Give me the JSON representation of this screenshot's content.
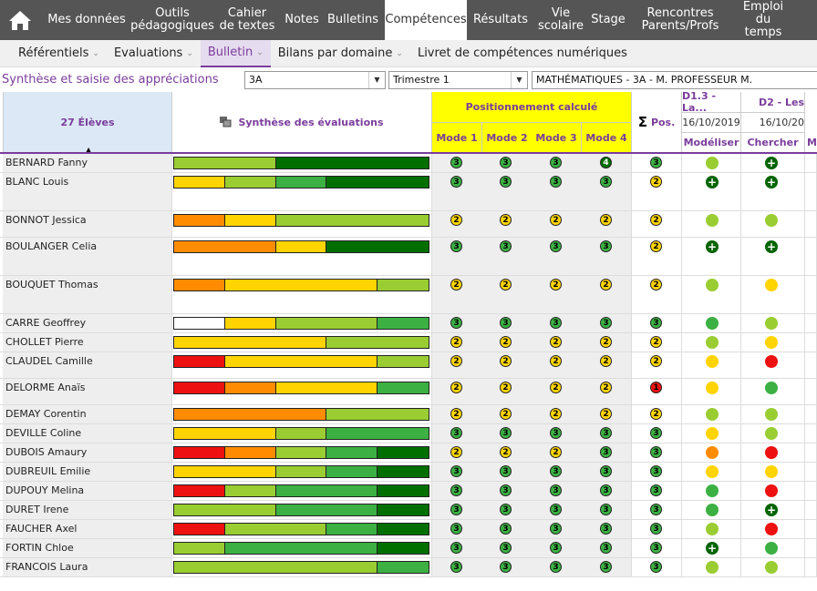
{
  "nav": {
    "tabs": [
      {
        "label": "Mes données"
      },
      {
        "label": "Outils\npédagogiques"
      },
      {
        "label": "Cahier\nde textes"
      },
      {
        "label": "Notes"
      },
      {
        "label": "Bulletins"
      },
      {
        "label": "Compétences",
        "active": true
      },
      {
        "label": "Résultats"
      },
      {
        "label": "Vie\nscolaire"
      },
      {
        "label": "Stage"
      },
      {
        "label": "Rencontres\nParents/Profs"
      },
      {
        "label": "Emploi\ndu temps"
      }
    ]
  },
  "subnav": [
    {
      "label": "Référentiels",
      "caret": true
    },
    {
      "label": "Evaluations",
      "caret": true
    },
    {
      "label": "Bulletin",
      "caret": true,
      "active": true
    },
    {
      "label": "Bilans par domaine",
      "caret": true
    },
    {
      "label": "Livret de compétences numériques",
      "caret": false
    }
  ],
  "page": {
    "title": "Synthèse et saisie des appréciations",
    "class": "3A",
    "period": "Trimestre 1",
    "subject": "MATHÉMATIQUES - 3A - M. PROFESSEUR M."
  },
  "header": {
    "students": "27 Élèves",
    "synth": "Synthèse des évaluations",
    "pos_calc": "Positionnement calculé",
    "modes": [
      "Mode 1",
      "Mode 2",
      "Mode 3",
      "Mode 4"
    ],
    "pos_label": "Pos.",
    "sigma": "Σ",
    "d13": "D1.3 - La...",
    "d13_date": "16/10/2019",
    "d13_sub": "Modéliser",
    "d2": "D2 - Les",
    "d2_date": "16/10/20",
    "d2_sub": "Chercher",
    "mo": "Mo"
  },
  "colors": {
    "g": "#006f00",
    "mg": "#3cb043",
    "lg": "#9acd32",
    "y": "#ffd400",
    "o": "#ff8c00",
    "r": "#ee1111",
    "w": "#ffffff",
    "accent": "#7a3d9c"
  },
  "students": [
    {
      "name": "BERNARD Fanny",
      "h": 21,
      "bar": [
        [
          "lg",
          40
        ],
        [
          "g",
          60
        ]
      ],
      "m": [
        3,
        3,
        3,
        4
      ],
      "p": 3,
      "d1": "lg",
      "d2": "plus"
    },
    {
      "name": "BLANC Louis",
      "h": 42,
      "bar": [
        [
          "y",
          20
        ],
        [
          "lg",
          20
        ],
        [
          "mg",
          20
        ],
        [
          "g",
          40
        ]
      ],
      "m": [
        3,
        3,
        3,
        3
      ],
      "p": 2,
      "d1": "plus",
      "d2": "plus"
    },
    {
      "name": "BONNOT Jessica",
      "h": 29,
      "bar": [
        [
          "o",
          20
        ],
        [
          "y",
          20
        ],
        [
          "lg",
          60
        ]
      ],
      "m": [
        2,
        2,
        2,
        2
      ],
      "p": 2,
      "d1": "lg",
      "d2": "lg"
    },
    {
      "name": "BOULANGER Celia",
      "h": 42,
      "bar": [
        [
          "o",
          40
        ],
        [
          "y",
          20
        ],
        [
          "g",
          40
        ]
      ],
      "m": [
        3,
        3,
        3,
        3
      ],
      "p": 2,
      "d1": "plus",
      "d2": "plus"
    },
    {
      "name": "BOUQUET Thomas",
      "h": 42,
      "bar": [
        [
          "o",
          20
        ],
        [
          "y",
          60
        ],
        [
          "lg",
          20
        ]
      ],
      "m": [
        2,
        2,
        2,
        2
      ],
      "p": 2,
      "d1": "lg",
      "d2": "y"
    },
    {
      "name": "CARRE Geoffrey",
      "h": 21,
      "bar": [
        [
          "w",
          20
        ],
        [
          "y",
          20
        ],
        [
          "lg",
          40
        ],
        [
          "mg",
          20
        ]
      ],
      "m": [
        3,
        3,
        3,
        3
      ],
      "p": 3,
      "d1": "mg",
      "d2": "lg"
    },
    {
      "name": "CHOLLET Pierre",
      "h": 21,
      "bar": [
        [
          "y",
          60
        ],
        [
          "lg",
          40
        ]
      ],
      "m": [
        2,
        2,
        2,
        2
      ],
      "p": 2,
      "d1": "lg",
      "d2": "y"
    },
    {
      "name": "CLAUDEL Camille",
      "h": 29,
      "bar": [
        [
          "r",
          20
        ],
        [
          "y",
          60
        ],
        [
          "lg",
          20
        ]
      ],
      "m": [
        2,
        2,
        2,
        2
      ],
      "p": 2,
      "d1": "y",
      "d2": "r"
    },
    {
      "name": "DELORME Anaïs",
      "h": 29,
      "bar": [
        [
          "r",
          20
        ],
        [
          "o",
          20
        ],
        [
          "y",
          40
        ],
        [
          "mg",
          20
        ]
      ],
      "m": [
        2,
        2,
        2,
        2
      ],
      "p": 1,
      "d1": "y",
      "d2": "mg"
    },
    {
      "name": "DEMAY Corentin",
      "h": 21,
      "bar": [
        [
          "o",
          60
        ],
        [
          "lg",
          40
        ]
      ],
      "m": [
        2,
        2,
        2,
        2
      ],
      "p": 2,
      "d1": "lg",
      "d2": "lg"
    },
    {
      "name": "DEVILLE Coline",
      "h": 21,
      "bar": [
        [
          "y",
          40
        ],
        [
          "lg",
          20
        ],
        [
          "mg",
          40
        ]
      ],
      "m": [
        3,
        3,
        3,
        3
      ],
      "p": 3,
      "d1": "y",
      "d2": "lg"
    },
    {
      "name": "DUBOIS Amaury",
      "h": 21,
      "bar": [
        [
          "r",
          20
        ],
        [
          "o",
          20
        ],
        [
          "lg",
          20
        ],
        [
          "mg",
          20
        ],
        [
          "g",
          20
        ]
      ],
      "m": [
        2,
        2,
        2,
        3
      ],
      "p": 3,
      "d1": "o",
      "d2": "r"
    },
    {
      "name": "DUBREUIL Emilie",
      "h": 21,
      "bar": [
        [
          "y",
          40
        ],
        [
          "lg",
          20
        ],
        [
          "mg",
          20
        ],
        [
          "g",
          20
        ]
      ],
      "m": [
        3,
        3,
        3,
        3
      ],
      "p": 3,
      "d1": "y",
      "d2": "y"
    },
    {
      "name": "DUPOUY Melina",
      "h": 21,
      "bar": [
        [
          "r",
          20
        ],
        [
          "lg",
          20
        ],
        [
          "mg",
          40
        ],
        [
          "g",
          20
        ]
      ],
      "m": [
        3,
        3,
        3,
        3
      ],
      "p": 3,
      "d1": "mg",
      "d2": "r"
    },
    {
      "name": "DURET Irene",
      "h": 21,
      "bar": [
        [
          "lg",
          40
        ],
        [
          "mg",
          40
        ],
        [
          "g",
          20
        ]
      ],
      "m": [
        3,
        3,
        3,
        3
      ],
      "p": 3,
      "d1": "mg",
      "d2": "plus"
    },
    {
      "name": "FAUCHER Axel",
      "h": 21,
      "bar": [
        [
          "r",
          20
        ],
        [
          "lg",
          40
        ],
        [
          "mg",
          20
        ],
        [
          "g",
          20
        ]
      ],
      "m": [
        3,
        3,
        3,
        3
      ],
      "p": 3,
      "d1": "lg",
      "d2": "r"
    },
    {
      "name": "FORTIN Chloe",
      "h": 21,
      "bar": [
        [
          "lg",
          20
        ],
        [
          "mg",
          60
        ],
        [
          "g",
          20
        ]
      ],
      "m": [
        3,
        3,
        3,
        3
      ],
      "p": 3,
      "d1": "plus",
      "d2": "mg"
    },
    {
      "name": "FRANCOIS Laura",
      "h": 21,
      "bar": [
        [
          "lg",
          80
        ],
        [
          "mg",
          20
        ]
      ],
      "m": [
        3,
        3,
        3,
        3
      ],
      "p": 3,
      "d1": "lg",
      "d2": "lg"
    }
  ]
}
